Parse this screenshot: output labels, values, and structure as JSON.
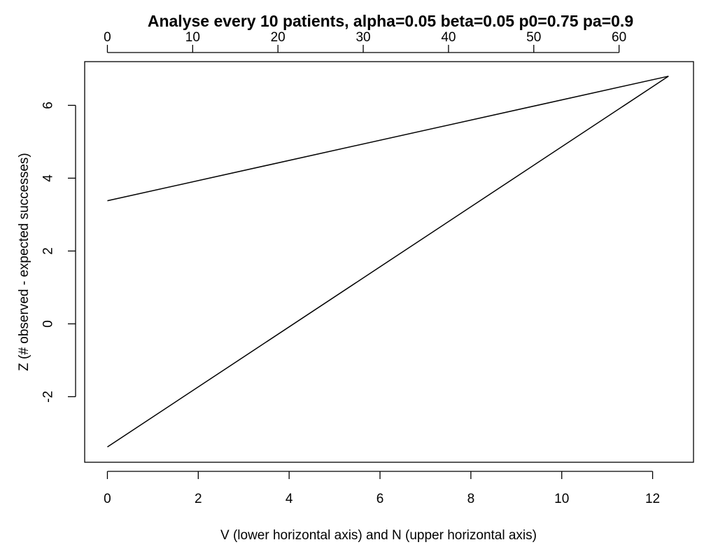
{
  "chart_data": {
    "type": "line",
    "title": "Analyse every 10 patients, alpha=0.05 beta=0.05 p0=0.75 pa=0.9",
    "xlabel": "V (lower horizontal axis) and N (upper horizontal axis)",
    "ylabel": "Z (# observed  - expected successes)",
    "xlim": [
      -0.5,
      12.9
    ],
    "ylim": [
      -3.8,
      7.2
    ],
    "x_ticks": [
      "0",
      "2",
      "4",
      "6",
      "8",
      "10",
      "12"
    ],
    "x_tick_values": [
      0,
      2,
      4,
      6,
      8,
      10,
      12
    ],
    "top_ticks": [
      "0",
      "10",
      "20",
      "30",
      "40",
      "50",
      "60"
    ],
    "top_tick_values": [
      0,
      10,
      20,
      30,
      40,
      50,
      60
    ],
    "top_axis_max_n": 65.8,
    "y_ticks": [
      "-2",
      "0",
      "2",
      "4",
      "6"
    ],
    "y_tick_values": [
      -2,
      0,
      2,
      4,
      6
    ],
    "grid": false,
    "series": [
      {
        "x": [
          0,
          12.35
        ],
        "y": [
          3.38,
          6.8
        ]
      },
      {
        "x": [
          0,
          12.35
        ],
        "y": [
          -3.38,
          6.8
        ]
      }
    ],
    "line_color": "#000000"
  }
}
